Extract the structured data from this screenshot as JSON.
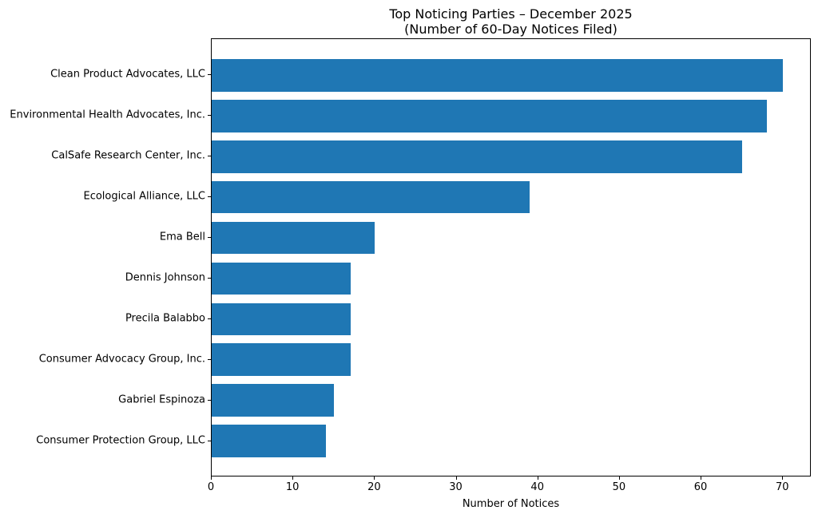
{
  "chart_data": {
    "type": "bar",
    "orientation": "horizontal",
    "title": "Top Noticing Parties – December 2025",
    "subtitle": "(Number of 60-Day Notices Filed)",
    "xlabel": "Number of Notices",
    "categories": [
      "Clean Product Advocates, LLC",
      "Environmental Health Advocates, Inc.",
      "CalSafe Research Center, Inc.",
      "Ecological Alliance, LLC",
      "Ema Bell",
      "Dennis Johnson",
      "Precila Balabbo",
      "Consumer Advocacy Group, Inc.",
      "Gabriel Espinoza",
      "Consumer Protection Group, LLC"
    ],
    "values": [
      70,
      68,
      65,
      39,
      20,
      17,
      17,
      17,
      15,
      14
    ],
    "xticks": [
      0,
      10,
      20,
      30,
      40,
      50,
      60,
      70
    ],
    "xlim": [
      0,
      73.5
    ],
    "bar_color": "#1f77b4",
    "grid": false,
    "legend": "none"
  }
}
